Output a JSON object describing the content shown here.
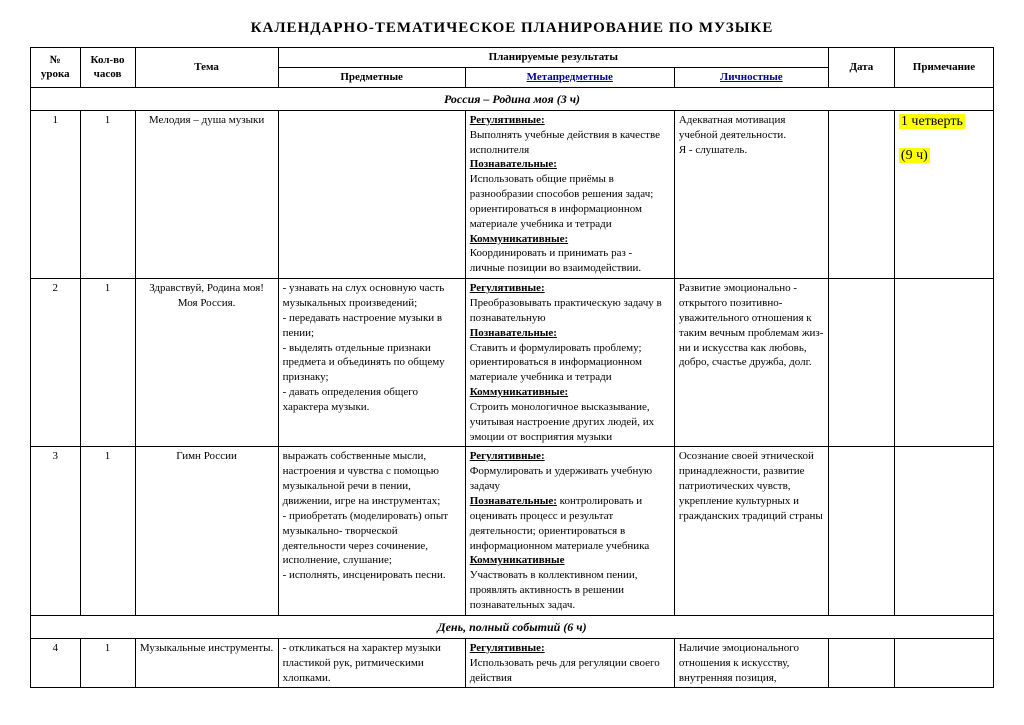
{
  "title": "КАЛЕНДАРНО-ТЕМАТИЧЕСКОЕ   ПЛАНИРОВАНИЕ   ПО   МУЗЫКЕ",
  "headers": {
    "num": "№ урока",
    "hours": "Кол-во часов",
    "theme": "Тема",
    "results": "Планируемые результаты",
    "pred": "Предметные",
    "meta": "Метапредметные",
    "lich": "Личностные",
    "date": "Дата",
    "note": "Примечание"
  },
  "section1": "Россия – Родина моя (3 ч)",
  "section2": "День, полный событий (6 ч)",
  "row1": {
    "num": "1",
    "hours": "1",
    "theme": "Мелодия – душа музыки",
    "meta_reg_h": "Регулятивные:",
    "meta_reg": " Выполнять учебные действия в качестве исполнителя",
    "meta_poz_h": "Познавательные:",
    "meta_poz": "Использовать общие приёмы в разнообразии способов решения задач; ориентироваться в информационном материале учебника и тетради",
    "meta_kom_h": "Коммуникативные:",
    "meta_kom": "Координировать и принимать раз - личные позиции во взаимодействии.",
    "lich": "Адекватная мотивация учебной деятельности.\n Я  - слушатель.",
    "note1": "1 четверть",
    "note2": "(9 ч)"
  },
  "row2": {
    "num": "2",
    "hours": "1",
    "theme": "Здравствуй, Родина моя! Моя Россия.",
    "pred": "- узнавать на слух основную часть музыкальных произведений;\n - передавать настроение музыки в пении;\n- выделять отдельные признаки предмета и объединять по общему признаку;\n- давать определения общего характера музыки.",
    "meta_reg_h": "Регулятивные:",
    "meta_reg": "Преобразовывать практическую задачу в познавательную",
    "meta_poz_h": "Познавательные:",
    "meta_poz": "Ставить и формулировать проблему; ориентироваться в информационном материале учебника и тетради",
    "meta_kom_h": "Коммуникативные:",
    "meta_kom": "Строить монологичное высказывание, учитывая настроение других людей, их эмоции от восприятия музыки",
    "lich": "Развитие эмоционально - открытого позитивно-уважительного отношения к таким вечным проблемам жиз-ни и искусства как любовь, добро, счастье дружба, долг."
  },
  "row3": {
    "num": "3",
    "hours": "1",
    "theme": "Гимн России",
    "pred": "выражать собственные мысли, настроения и чувства с помощью музыкальной речи в пении, движении, игре на инструментах;\n- приобретать (моделировать) опыт музыкально- творческой деятельности через сочинение, исполнение, слушание;\n- исполнять, инсценировать песни.",
    "meta_reg_h": "Регулятивные:",
    "meta_reg": "Формулировать и удерживать учебную задачу",
    "meta_poz_h": " Познавательные:",
    "meta_poz": " контролировать и оценивать процесс и результат деятельности;  ориентироваться  в информационном материале учебника",
    "meta_kom_h": "Коммуникативные",
    "meta_kom": "Участвовать в коллективном пении, проявлять активность в решении познавательных задач.",
    "lich": "Осознание своей этнической принадлежности, развитие патриотических чувств, укрепление культурных и гражданских традиций страны"
  },
  "row4": {
    "num": "4",
    "hours": "1",
    "theme": "Музыкальные инструменты.",
    "pred": "-  откликаться на характер музыки пластикой рук, ритмическими хлопками.",
    "meta_reg_h": "Регулятивные:",
    "meta_reg": "Использовать речь для регуляции своего действия",
    "lich": "Наличие эмоционального отношения к искусству, внутренняя позиция,"
  }
}
